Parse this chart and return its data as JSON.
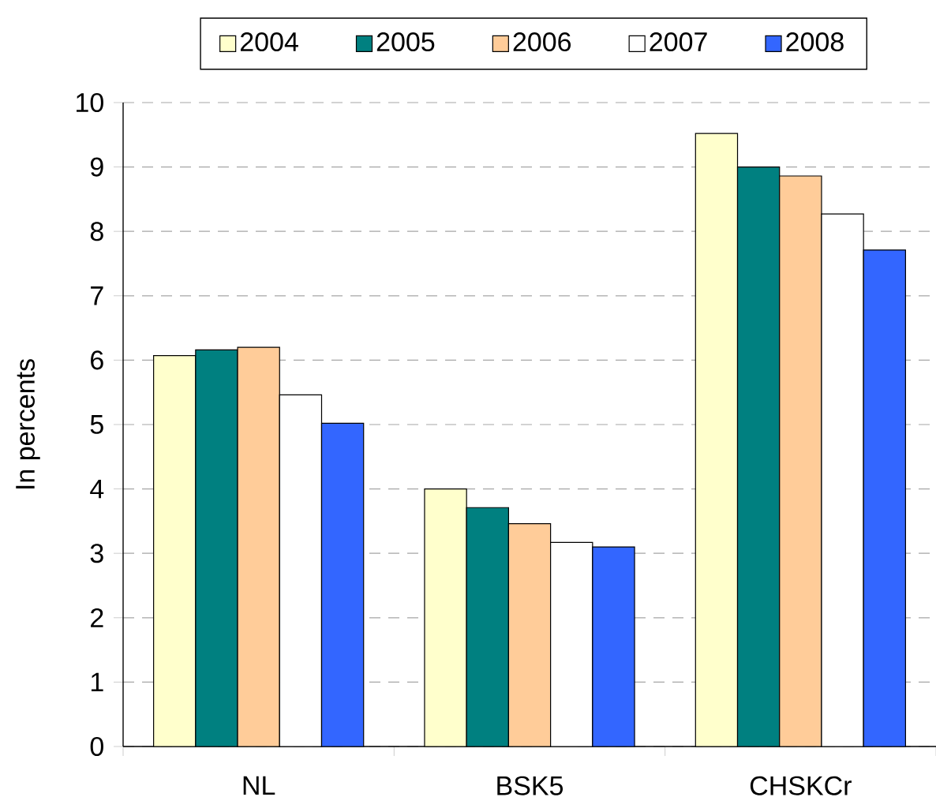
{
  "chart_data": {
    "type": "bar",
    "ylabel": "In percents",
    "categories": [
      "NL",
      "BSK5",
      "CHSKCr"
    ],
    "series": [
      {
        "name": "2004",
        "color": "#ffffcc",
        "values": [
          6.07,
          4.0,
          9.52
        ]
      },
      {
        "name": "2005",
        "color": "#008080",
        "values": [
          6.16,
          3.71,
          9.0
        ]
      },
      {
        "name": "2006",
        "color": "#ffcc99",
        "values": [
          6.2,
          3.46,
          8.86
        ]
      },
      {
        "name": "2007",
        "color": "#ffffff",
        "values": [
          5.46,
          3.17,
          8.27
        ]
      },
      {
        "name": "2008",
        "color": "#3366ff",
        "values": [
          5.02,
          3.1,
          7.71
        ]
      }
    ],
    "ylim": [
      0,
      10
    ],
    "yticks": [
      0,
      1,
      2,
      3,
      4,
      5,
      6,
      7,
      8,
      9,
      10
    ],
    "grid": "y",
    "legend": "top"
  }
}
